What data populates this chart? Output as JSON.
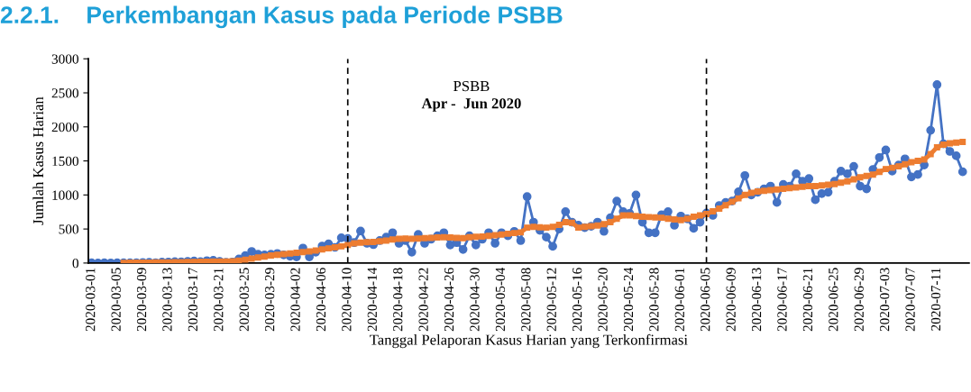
{
  "chart_data": {
    "type": "line",
    "title": "2.2.1.    Perkembangan Kasus pada Periode PSBB",
    "ylabel": "Jumlah Kasus Harian",
    "xlabel": "Tanggal Pelaporan Kasus Harian yang Terkonfirmasi",
    "annotations": [
      "PSBB",
      "Apr -  Jun 2020"
    ],
    "x": [
      "2020-03-01",
      "2020-03-02",
      "2020-03-03",
      "2020-03-04",
      "2020-03-05",
      "2020-03-06",
      "2020-03-07",
      "2020-03-08",
      "2020-03-09",
      "2020-03-10",
      "2020-03-11",
      "2020-03-12",
      "2020-03-13",
      "2020-03-14",
      "2020-03-15",
      "2020-03-16",
      "2020-03-17",
      "2020-03-18",
      "2020-03-19",
      "2020-03-20",
      "2020-03-21",
      "2020-03-22",
      "2020-03-23",
      "2020-03-24",
      "2020-03-25",
      "2020-03-26",
      "2020-03-27",
      "2020-03-28",
      "2020-03-29",
      "2020-03-30",
      "2020-03-31",
      "2020-04-01",
      "2020-04-02",
      "2020-04-03",
      "2020-04-04",
      "2020-04-05",
      "2020-04-06",
      "2020-04-07",
      "2020-04-08",
      "2020-04-09",
      "2020-04-10",
      "2020-04-11",
      "2020-04-12",
      "2020-04-13",
      "2020-04-14",
      "2020-04-15",
      "2020-04-16",
      "2020-04-17",
      "2020-04-18",
      "2020-04-19",
      "2020-04-20",
      "2020-04-21",
      "2020-04-22",
      "2020-04-23",
      "2020-04-24",
      "2020-04-25",
      "2020-04-26",
      "2020-04-27",
      "2020-04-28",
      "2020-04-29",
      "2020-04-30",
      "2020-05-01",
      "2020-05-02",
      "2020-05-03",
      "2020-05-04",
      "2020-05-05",
      "2020-05-06",
      "2020-05-07",
      "2020-05-08",
      "2020-05-09",
      "2020-05-10",
      "2020-05-11",
      "2020-05-12",
      "2020-05-13",
      "2020-05-14",
      "2020-05-15",
      "2020-05-16",
      "2020-05-17",
      "2020-05-18",
      "2020-05-19",
      "2020-05-20",
      "2020-05-21",
      "2020-05-22",
      "2020-05-23",
      "2020-05-24",
      "2020-05-25",
      "2020-05-26",
      "2020-05-27",
      "2020-05-28",
      "2020-05-29",
      "2020-05-30",
      "2020-05-31",
      "2020-06-01",
      "2020-06-02",
      "2020-06-03",
      "2020-06-04",
      "2020-06-05",
      "2020-06-06",
      "2020-06-07",
      "2020-06-08",
      "2020-06-09",
      "2020-06-10",
      "2020-06-11",
      "2020-06-12",
      "2020-06-13",
      "2020-06-14",
      "2020-06-15",
      "2020-06-16",
      "2020-06-17",
      "2020-06-18",
      "2020-06-19",
      "2020-06-20",
      "2020-06-21",
      "2020-06-22",
      "2020-06-23",
      "2020-06-24",
      "2020-06-25",
      "2020-06-26",
      "2020-06-27",
      "2020-06-28",
      "2020-06-29",
      "2020-06-30",
      "2020-07-01",
      "2020-07-02",
      "2020-07-03",
      "2020-07-04",
      "2020-07-05",
      "2020-07-06",
      "2020-07-07",
      "2020-07-08",
      "2020-07-09",
      "2020-07-10",
      "2020-07-11",
      "2020-07-12",
      "2020-07-13",
      "2020-07-14",
      "2020-07-15"
    ],
    "series": [
      {
        "color": "#4472c4",
        "marker": "circle",
        "values": [
          2,
          0,
          3,
          1,
          4,
          2,
          3,
          5,
          8,
          10,
          5,
          12,
          15,
          20,
          18,
          25,
          30,
          20,
          35,
          40,
          25,
          10,
          15,
          60,
          110,
          170,
          130,
          120,
          130,
          140,
          120,
          100,
          90,
          220,
          90,
          160,
          250,
          280,
          230,
          370,
          360,
          300,
          470,
          290,
          270,
          330,
          380,
          445,
          290,
          330,
          160,
          420,
          290,
          350,
          400,
          445,
          265,
          300,
          200,
          400,
          265,
          350,
          445,
          290,
          445,
          400,
          465,
          330,
          975,
          600,
          480,
          380,
          245,
          500,
          755,
          600,
          555,
          520,
          540,
          600,
          465,
          665,
          910,
          755,
          730,
          1000,
          600,
          445,
          445,
          710,
          755,
          555,
          690,
          650,
          510,
          600,
          735,
          700,
          845,
          890,
          910,
          1045,
          1285,
          1000,
          1040,
          1090,
          1130,
          890,
          1155,
          1130,
          1310,
          1200,
          1240,
          930,
          1020,
          1040,
          1200,
          1350,
          1310,
          1420,
          1130,
          1090,
          1375,
          1550,
          1660,
          1350,
          1440,
          1530,
          1265,
          1300,
          1440,
          1950,
          2620,
          1750,
          1640,
          1575,
          1340
        ]
      },
      {
        "color": "#ed7d31",
        "marker": "square",
        "x": [
          "2020-03-06",
          "2020-03-07",
          "2020-03-08",
          "2020-03-09",
          "2020-03-10",
          "2020-03-11",
          "2020-03-12",
          "2020-03-13",
          "2020-03-14",
          "2020-03-15",
          "2020-03-16",
          "2020-03-17",
          "2020-03-18",
          "2020-03-19",
          "2020-03-20",
          "2020-03-21",
          "2020-03-22",
          "2020-03-23",
          "2020-03-24",
          "2020-03-25",
          "2020-03-26",
          "2020-03-27",
          "2020-03-28",
          "2020-03-29",
          "2020-03-30",
          "2020-03-31",
          "2020-04-01",
          "2020-04-02",
          "2020-04-03",
          "2020-04-04",
          "2020-04-05",
          "2020-04-06",
          "2020-04-07",
          "2020-04-08",
          "2020-04-09",
          "2020-04-10",
          "2020-04-11",
          "2020-04-12",
          "2020-04-13",
          "2020-04-14",
          "2020-04-15",
          "2020-04-16",
          "2020-04-17",
          "2020-04-18",
          "2020-04-19",
          "2020-04-20",
          "2020-04-21",
          "2020-04-22",
          "2020-04-23",
          "2020-04-24",
          "2020-04-25",
          "2020-04-26",
          "2020-04-27",
          "2020-04-28",
          "2020-04-29",
          "2020-04-30",
          "2020-05-01",
          "2020-05-02",
          "2020-05-03",
          "2020-05-04",
          "2020-05-05",
          "2020-05-06",
          "2020-05-07",
          "2020-05-08",
          "2020-05-09",
          "2020-05-10",
          "2020-05-11",
          "2020-05-12",
          "2020-05-13",
          "2020-05-14",
          "2020-05-15",
          "2020-05-16",
          "2020-05-17",
          "2020-05-18",
          "2020-05-19",
          "2020-05-20",
          "2020-05-21",
          "2020-05-22",
          "2020-05-23",
          "2020-05-24",
          "2020-05-25",
          "2020-05-26",
          "2020-05-27",
          "2020-05-28",
          "2020-05-29",
          "2020-05-30",
          "2020-05-31",
          "2020-06-01",
          "2020-06-02",
          "2020-06-03",
          "2020-06-04",
          "2020-06-05",
          "2020-06-06",
          "2020-06-07",
          "2020-06-08",
          "2020-06-09",
          "2020-06-10",
          "2020-06-11",
          "2020-06-12",
          "2020-06-13",
          "2020-06-14",
          "2020-06-15",
          "2020-06-16",
          "2020-06-17",
          "2020-06-18",
          "2020-06-19",
          "2020-06-20",
          "2020-06-21",
          "2020-06-22",
          "2020-06-23",
          "2020-06-24",
          "2020-06-25",
          "2020-06-26",
          "2020-06-27",
          "2020-06-28",
          "2020-06-29",
          "2020-06-30",
          "2020-07-01",
          "2020-07-02",
          "2020-07-03",
          "2020-07-04",
          "2020-07-05",
          "2020-07-06",
          "2020-07-07",
          "2020-07-08",
          "2020-07-09",
          "2020-07-10",
          "2020-07-11",
          "2020-07-12",
          "2020-07-13",
          "2020-07-14",
          "2020-07-15"
        ],
        "values": [
          3,
          4,
          5,
          6,
          7,
          8,
          9,
          10,
          12,
          13,
          15,
          17,
          18,
          20,
          21,
          22,
          23,
          25,
          35,
          50,
          65,
          80,
          95,
          110,
          120,
          130,
          140,
          150,
          160,
          170,
          185,
          200,
          215,
          230,
          245,
          265,
          290,
          300,
          305,
          310,
          320,
          330,
          345,
          355,
          360,
          355,
          360,
          365,
          370,
          375,
          380,
          375,
          370,
          365,
          380,
          385,
          390,
          400,
          410,
          420,
          430,
          440,
          450,
          520,
          530,
          525,
          520,
          530,
          560,
          600,
          590,
          520,
          530,
          540,
          550,
          570,
          600,
          650,
          700,
          700,
          690,
          680,
          675,
          670,
          665,
          650,
          640,
          630,
          650,
          680,
          700,
          720,
          760,
          800,
          850,
          900,
          950,
          1000,
          1030,
          1050,
          1060,
          1070,
          1080,
          1090,
          1100,
          1110,
          1120,
          1130,
          1130,
          1140,
          1150,
          1160,
          1180,
          1200,
          1230,
          1260,
          1280,
          1300,
          1340,
          1380,
          1400,
          1420,
          1450,
          1480,
          1500,
          1520,
          1600,
          1700,
          1740,
          1760,
          1770,
          1780
        ]
      }
    ],
    "xlim": [
      "2020-02-29T12:00",
      "2020-07-16"
    ],
    "xticks": [
      "2020-03-01",
      "2020-03-05",
      "2020-03-09",
      "2020-03-13",
      "2020-03-17",
      "2020-03-21",
      "2020-03-25",
      "2020-03-29",
      "2020-04-02",
      "2020-04-06",
      "2020-04-10",
      "2020-04-14",
      "2020-04-18",
      "2020-04-22",
      "2020-04-26",
      "2020-04-30",
      "2020-05-04",
      "2020-05-08",
      "2020-05-12",
      "2020-05-16",
      "2020-05-20",
      "2020-05-24",
      "2020-05-28",
      "2020-06-01",
      "2020-06-05",
      "2020-06-09",
      "2020-06-13",
      "2020-06-17",
      "2020-06-21",
      "2020-06-25",
      "2020-06-29",
      "2020-07-03",
      "2020-07-07",
      "2020-07-11"
    ],
    "ylim": [
      0,
      3000
    ],
    "yticks": [
      0,
      500,
      1000,
      1500,
      2000,
      2500,
      3000
    ],
    "ref_lines": [
      {
        "axis": "x",
        "value": "2020-04-10",
        "color": "#000000",
        "line_style": "dashed"
      },
      {
        "axis": "x",
        "value": "2020-06-05",
        "color": "#000000",
        "line_style": "dashed"
      }
    ],
    "grid": false,
    "legend": false
  }
}
